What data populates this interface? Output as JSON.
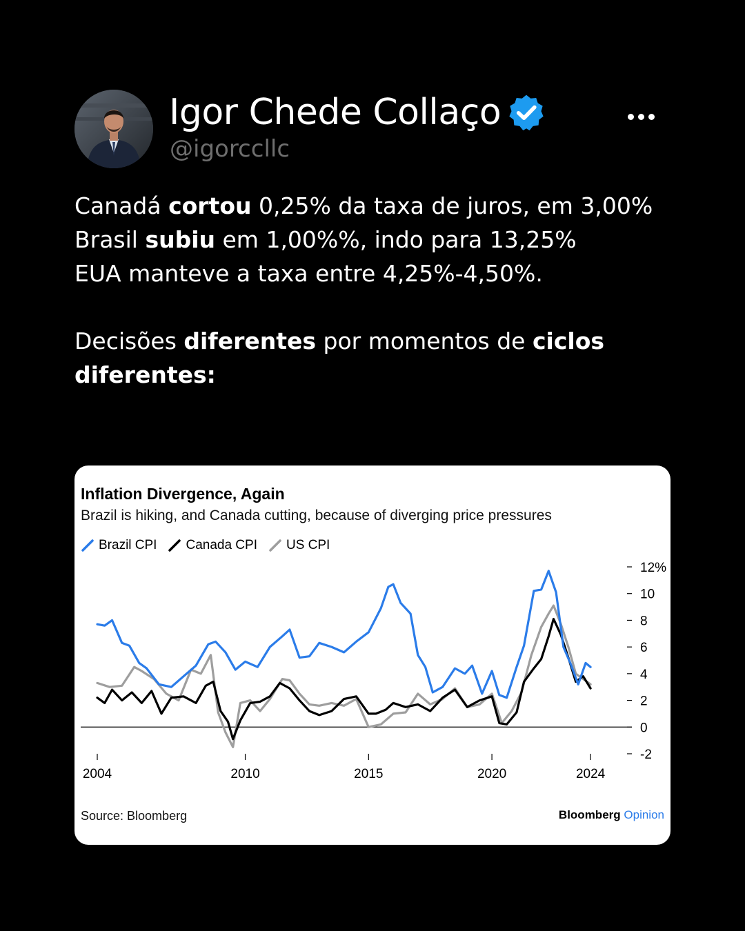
{
  "author": {
    "name": "Igor Chede Collaço",
    "handle": "@igorccllc",
    "verified_color": "#1d9bf0"
  },
  "post": {
    "lines": [
      [
        {
          "t": "Canadá ",
          "b": false
        },
        {
          "t": "cortou",
          "b": true
        },
        {
          "t": " 0,25% da taxa de juros, em 3,00%",
          "b": false
        }
      ],
      [
        {
          "t": "Brasil ",
          "b": false
        },
        {
          "t": "subiu",
          "b": true
        },
        {
          "t": " em 1,00%%, indo para 13,25%",
          "b": false
        }
      ],
      [
        {
          "t": "EUA manteve a taxa entre 4,25%-4,50%.",
          "b": false
        }
      ],
      [],
      [
        {
          "t": "Decisões ",
          "b": false
        },
        {
          "t": "diferentes",
          "b": true
        },
        {
          "t": " por momentos de ",
          "b": false
        },
        {
          "t": "ciclos",
          "b": true
        }
      ],
      [
        {
          "t": "diferentes:",
          "b": true
        }
      ]
    ]
  },
  "card": {
    "source": "Source: Bloomberg",
    "brand_main": "Bloomberg",
    "brand_accent": "Opinion"
  },
  "chart_data": {
    "type": "line",
    "title": "Inflation Divergence, Again",
    "subtitle": "Brazil is hiking, and Canada cutting, because of diverging price pressures",
    "xlim": [
      2004,
      2024.5
    ],
    "ylim": [
      -2,
      12
    ],
    "x_ticks": [
      2004,
      2010,
      2015,
      2020,
      2024
    ],
    "y_ticks": [
      -2,
      0,
      2,
      4,
      6,
      8,
      10,
      12
    ],
    "y_tick_labels": [
      "-2",
      "0",
      "2",
      "4",
      "6",
      "8",
      "10",
      "12%"
    ],
    "legend_position": "top-left",
    "series": [
      {
        "name": "Brazil CPI",
        "color": "#2b7ce9",
        "x": [
          2004.0,
          2004.3,
          2004.6,
          2005.0,
          2005.3,
          2005.7,
          2006.0,
          2006.5,
          2007.0,
          2007.5,
          2008.0,
          2008.5,
          2008.8,
          2009.2,
          2009.6,
          2010.0,
          2010.5,
          2011.0,
          2011.5,
          2011.8,
          2012.2,
          2012.6,
          2013.0,
          2013.5,
          2014.0,
          2014.5,
          2015.0,
          2015.5,
          2015.8,
          2016.0,
          2016.3,
          2016.7,
          2017.0,
          2017.3,
          2017.6,
          2018.0,
          2018.5,
          2018.9,
          2019.2,
          2019.6,
          2020.0,
          2020.3,
          2020.6,
          2021.0,
          2021.3,
          2021.7,
          2022.0,
          2022.3,
          2022.6,
          2022.9,
          2023.2,
          2023.5,
          2023.8,
          2024.0
        ],
        "y": [
          7.7,
          7.6,
          8.0,
          6.3,
          6.1,
          4.8,
          4.4,
          3.2,
          3.0,
          3.8,
          4.6,
          6.2,
          6.4,
          5.6,
          4.3,
          4.9,
          4.5,
          6.0,
          6.8,
          7.3,
          5.2,
          5.3,
          6.3,
          6.0,
          5.6,
          6.4,
          7.1,
          8.9,
          10.5,
          10.7,
          9.3,
          8.5,
          5.4,
          4.5,
          2.6,
          3.0,
          4.4,
          4.0,
          4.6,
          2.5,
          4.2,
          2.4,
          2.2,
          4.5,
          6.1,
          10.2,
          10.3,
          11.7,
          10.1,
          6.0,
          4.7,
          3.2,
          4.8,
          4.5
        ]
      },
      {
        "name": "Canada CPI",
        "color": "#000000",
        "x": [
          2004.0,
          2004.3,
          2004.6,
          2005.0,
          2005.4,
          2005.8,
          2006.2,
          2006.6,
          2007.0,
          2007.5,
          2008.0,
          2008.4,
          2008.7,
          2009.0,
          2009.3,
          2009.5,
          2009.8,
          2010.2,
          2010.6,
          2011.0,
          2011.4,
          2011.8,
          2012.2,
          2012.6,
          2013.0,
          2013.5,
          2014.0,
          2014.5,
          2015.0,
          2015.3,
          2015.7,
          2016.0,
          2016.5,
          2017.0,
          2017.5,
          2018.0,
          2018.5,
          2019.0,
          2019.5,
          2020.0,
          2020.3,
          2020.6,
          2021.0,
          2021.3,
          2021.7,
          2022.0,
          2022.3,
          2022.5,
          2022.8,
          2023.1,
          2023.4,
          2023.7,
          2024.0
        ],
        "y": [
          2.2,
          1.8,
          2.8,
          2.0,
          2.6,
          1.8,
          2.7,
          1.0,
          2.2,
          2.3,
          1.8,
          3.1,
          3.4,
          1.2,
          0.4,
          -0.9,
          0.5,
          1.8,
          1.9,
          2.3,
          3.3,
          2.9,
          2.0,
          1.2,
          0.9,
          1.2,
          2.1,
          2.3,
          1.0,
          1.0,
          1.3,
          1.8,
          1.5,
          1.7,
          1.2,
          2.2,
          2.8,
          1.5,
          2.0,
          2.3,
          0.3,
          0.2,
          1.1,
          3.4,
          4.4,
          5.1,
          6.8,
          8.1,
          6.9,
          5.2,
          3.4,
          3.8,
          2.9
        ]
      },
      {
        "name": "US CPI",
        "color": "#9e9e9e",
        "x": [
          2004.0,
          2004.5,
          2005.0,
          2005.5,
          2005.8,
          2006.3,
          2006.8,
          2007.3,
          2007.8,
          2008.2,
          2008.6,
          2008.9,
          2009.2,
          2009.5,
          2009.8,
          2010.2,
          2010.6,
          2011.0,
          2011.5,
          2011.8,
          2012.2,
          2012.6,
          2013.0,
          2013.5,
          2014.0,
          2014.5,
          2015.0,
          2015.5,
          2016.0,
          2016.5,
          2017.0,
          2017.5,
          2018.0,
          2018.5,
          2019.0,
          2019.5,
          2020.0,
          2020.4,
          2020.8,
          2021.2,
          2021.6,
          2022.0,
          2022.3,
          2022.5,
          2022.8,
          2023.1,
          2023.4,
          2023.7,
          2024.0
        ],
        "y": [
          3.3,
          3.0,
          3.1,
          4.5,
          4.2,
          3.6,
          2.5,
          2.0,
          4.3,
          4.0,
          5.4,
          1.1,
          -0.4,
          -1.5,
          1.8,
          2.0,
          1.2,
          2.1,
          3.6,
          3.5,
          2.5,
          1.7,
          1.6,
          1.8,
          1.6,
          2.1,
          0.0,
          0.2,
          1.0,
          1.1,
          2.5,
          1.7,
          2.1,
          2.9,
          1.5,
          1.7,
          2.5,
          0.3,
          1.2,
          2.6,
          5.4,
          7.5,
          8.5,
          9.1,
          7.7,
          6.0,
          4.0,
          3.6,
          3.2
        ]
      }
    ]
  }
}
